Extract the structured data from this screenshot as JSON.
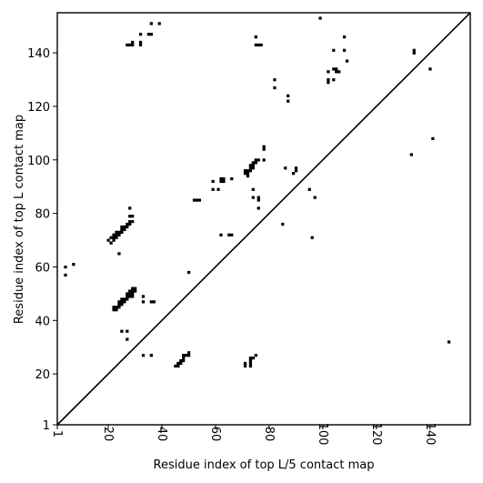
{
  "chart_data": {
    "type": "scatter",
    "title": "",
    "xlabel": "Residue index of top L/5 contact map",
    "ylabel": "Residue index of top L contact map",
    "xlim": [
      1,
      155
    ],
    "ylim": [
      1,
      155
    ],
    "x_ticks": [
      1,
      20,
      40,
      60,
      80,
      100,
      120,
      140
    ],
    "y_ticks": [
      1,
      20,
      40,
      60,
      80,
      100,
      120,
      140
    ],
    "grid": false,
    "legend": "none",
    "marker": "square",
    "color": "#000000",
    "diagonal": true,
    "points_above_diagonal": [
      [
        4,
        57
      ],
      [
        4,
        60
      ],
      [
        7,
        61
      ],
      [
        20,
        70
      ],
      [
        21,
        69
      ],
      [
        21,
        71
      ],
      [
        22,
        70
      ],
      [
        22,
        71
      ],
      [
        22,
        72
      ],
      [
        23,
        71
      ],
      [
        23,
        72
      ],
      [
        23,
        73
      ],
      [
        24,
        72
      ],
      [
        24,
        73
      ],
      [
        25,
        73
      ],
      [
        25,
        74
      ],
      [
        25,
        75
      ],
      [
        26,
        74
      ],
      [
        26,
        75
      ],
      [
        27,
        75
      ],
      [
        27,
        76
      ],
      [
        28,
        76
      ],
      [
        28,
        77
      ],
      [
        29,
        77
      ],
      [
        28,
        79
      ],
      [
        29,
        79
      ],
      [
        28,
        82
      ],
      [
        24,
        65
      ],
      [
        22,
        44
      ],
      [
        22,
        45
      ],
      [
        23,
        44
      ],
      [
        23,
        45
      ],
      [
        24,
        45
      ],
      [
        24,
        46
      ],
      [
        24,
        47
      ],
      [
        25,
        46
      ],
      [
        25,
        47
      ],
      [
        25,
        48
      ],
      [
        26,
        47
      ],
      [
        26,
        48
      ],
      [
        27,
        48
      ],
      [
        27,
        49
      ],
      [
        27,
        50
      ],
      [
        28,
        49
      ],
      [
        28,
        50
      ],
      [
        28,
        51
      ],
      [
        29,
        50
      ],
      [
        29,
        51
      ],
      [
        29,
        52
      ],
      [
        30,
        51
      ],
      [
        30,
        52
      ],
      [
        29,
        49
      ],
      [
        33,
        49
      ],
      [
        33,
        47
      ],
      [
        36,
        47
      ],
      [
        37,
        47
      ],
      [
        25,
        36
      ],
      [
        27,
        36
      ],
      [
        27,
        33
      ],
      [
        33,
        27
      ],
      [
        36,
        27
      ],
      [
        27,
        143
      ],
      [
        28,
        143
      ],
      [
        29,
        143
      ],
      [
        29,
        144
      ],
      [
        32,
        143
      ],
      [
        32,
        144
      ],
      [
        32,
        147
      ],
      [
        35,
        147
      ],
      [
        36,
        147
      ],
      [
        36,
        151
      ],
      [
        39,
        151
      ],
      [
        45,
        23
      ],
      [
        46,
        23
      ],
      [
        46,
        24
      ],
      [
        47,
        24
      ],
      [
        47,
        25
      ],
      [
        48,
        25
      ],
      [
        48,
        26
      ],
      [
        48,
        27
      ],
      [
        49,
        27
      ],
      [
        50,
        27
      ],
      [
        50,
        28
      ],
      [
        50,
        58
      ],
      [
        52,
        85
      ],
      [
        53,
        85
      ],
      [
        54,
        85
      ],
      [
        59,
        89
      ],
      [
        59,
        92
      ],
      [
        61,
        89
      ],
      [
        62,
        92
      ],
      [
        62,
        93
      ],
      [
        63,
        92
      ],
      [
        63,
        93
      ],
      [
        66,
        93
      ],
      [
        62,
        72
      ],
      [
        65,
        72
      ],
      [
        66,
        72
      ],
      [
        71,
        23
      ],
      [
        71,
        24
      ],
      [
        73,
        23
      ],
      [
        73,
        24
      ],
      [
        73,
        25
      ],
      [
        73,
        26
      ],
      [
        74,
        26
      ],
      [
        75,
        27
      ],
      [
        71,
        95
      ],
      [
        71,
        96
      ],
      [
        72,
        94
      ],
      [
        72,
        95
      ],
      [
        72,
        96
      ],
      [
        73,
        96
      ],
      [
        73,
        97
      ],
      [
        73,
        98
      ],
      [
        74,
        97
      ],
      [
        74,
        98
      ],
      [
        74,
        99
      ],
      [
        75,
        99
      ],
      [
        75,
        100
      ],
      [
        76,
        100
      ],
      [
        78,
        100
      ],
      [
        78,
        104
      ],
      [
        78,
        105
      ],
      [
        74,
        89
      ],
      [
        74,
        86
      ],
      [
        76,
        85
      ],
      [
        76,
        86
      ],
      [
        76,
        82
      ],
      [
        85,
        76
      ],
      [
        75,
        146
      ],
      [
        75,
        143
      ],
      [
        76,
        143
      ],
      [
        77,
        143
      ],
      [
        82,
        127
      ],
      [
        82,
        130
      ],
      [
        87,
        122
      ],
      [
        87,
        124
      ],
      [
        86,
        97
      ],
      [
        89,
        95
      ],
      [
        90,
        96
      ],
      [
        90,
        97
      ],
      [
        95,
        89
      ],
      [
        97,
        86
      ],
      [
        96,
        71
      ],
      [
        99,
        153
      ],
      [
        102,
        129
      ],
      [
        102,
        130
      ],
      [
        102,
        133
      ],
      [
        104,
        130
      ],
      [
        104,
        141
      ],
      [
        104,
        134
      ],
      [
        105,
        133
      ],
      [
        105,
        134
      ],
      [
        106,
        133
      ],
      [
        108,
        141
      ],
      [
        108,
        146
      ],
      [
        109,
        137
      ],
      [
        133,
        102
      ],
      [
        134,
        140
      ],
      [
        134,
        141
      ],
      [
        140,
        134
      ],
      [
        141,
        108
      ],
      [
        147,
        32
      ]
    ]
  }
}
